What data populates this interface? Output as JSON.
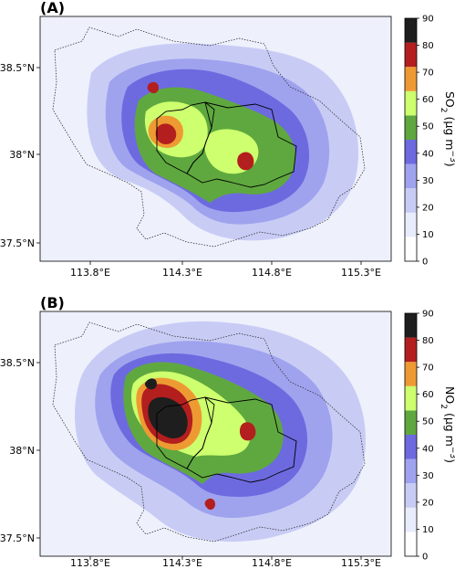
{
  "panels": [
    {
      "label": "(A)",
      "pollutant": "SO",
      "subscript": "2",
      "units": "(μg m",
      "units_exp": "−3",
      "units_close": ")"
    },
    {
      "label": "(B)",
      "pollutant": "NO",
      "subscript": "2",
      "units": "(μg m",
      "units_exp": "−3",
      "units_close": ")"
    }
  ],
  "x_ticks": [
    "113.8°E",
    "114.3°E",
    "114.8°E",
    "115.3°E"
  ],
  "y_ticks": [
    "38.5°N",
    "38°N",
    "37.5°N"
  ],
  "colorbar": {
    "levels": [
      "0",
      "10",
      "20",
      "30",
      "40",
      "50",
      "60",
      "70",
      "80",
      "90"
    ],
    "colors": [
      "#ffffff",
      "#e9ecfb",
      "#c8ccf5",
      "#9fa3ee",
      "#6d6ae0",
      "#5fa83f",
      "#cdff6e",
      "#ee9a33",
      "#b31e1e",
      "#1e1e1e"
    ]
  },
  "chart_data": [
    {
      "type": "heatmap",
      "title": "(A)",
      "variable": "SO2",
      "units": "μg m−3",
      "x_ticks": [
        113.8,
        114.3,
        114.8,
        115.3
      ],
      "y_ticks": [
        38.5,
        38.0,
        37.5
      ],
      "color_levels": [
        0,
        10,
        20,
        30,
        40,
        50,
        60,
        70,
        80,
        90
      ],
      "hotspots": [
        {
          "lon": 114.12,
          "lat": 38.13,
          "value": 80
        },
        {
          "lon": 114.05,
          "lat": 38.42,
          "value": 75
        },
        {
          "lon": 114.68,
          "lat": 37.97,
          "value": 75
        },
        {
          "lon": 114.32,
          "lat": 38.02,
          "value": 65
        }
      ]
    },
    {
      "type": "heatmap",
      "title": "(B)",
      "variable": "NO2",
      "units": "μg m−3",
      "x_ticks": [
        113.8,
        114.3,
        114.8,
        115.3
      ],
      "y_ticks": [
        38.5,
        38.0,
        37.5
      ],
      "color_levels": [
        0,
        10,
        20,
        30,
        40,
        50,
        60,
        70,
        80,
        90
      ],
      "hotspots": [
        {
          "lon": 114.18,
          "lat": 38.1,
          "value": 90
        },
        {
          "lon": 114.05,
          "lat": 38.42,
          "value": 85
        },
        {
          "lon": 114.68,
          "lat": 37.97,
          "value": 75
        },
        {
          "lon": 114.5,
          "lat": 37.62,
          "value": 65
        }
      ]
    }
  ]
}
